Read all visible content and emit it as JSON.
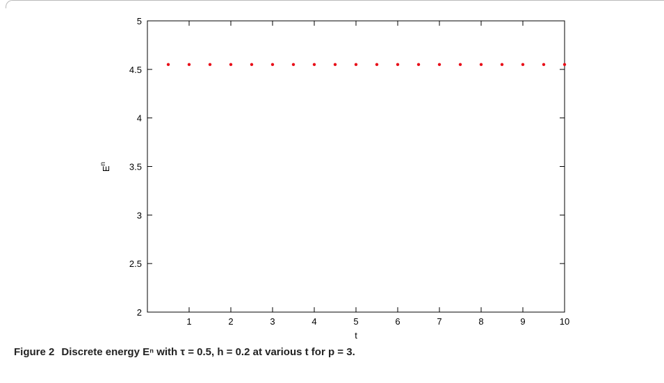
{
  "chart_data": {
    "type": "scatter",
    "xlabel": "t",
    "ylabel_base": "E",
    "ylabel_sup": "n",
    "xlim": [
      0,
      10
    ],
    "ylim": [
      2,
      5
    ],
    "x_ticks": [
      1,
      2,
      3,
      4,
      5,
      6,
      7,
      8,
      9,
      10
    ],
    "y_ticks": [
      2,
      2.5,
      3,
      3.5,
      4,
      4.5,
      5
    ],
    "y_tick_labels": [
      "2",
      "2.5",
      "3",
      "3.5",
      "4",
      "4.5",
      "5"
    ],
    "grid": false,
    "marker_color": "#e8101a",
    "x": [
      0.5,
      1,
      1.5,
      2,
      2.5,
      3,
      3.5,
      4,
      4.5,
      5,
      5.5,
      6,
      6.5,
      7,
      7.5,
      8,
      8.5,
      9,
      9.5,
      10
    ],
    "y": [
      4.55,
      4.55,
      4.55,
      4.55,
      4.55,
      4.55,
      4.55,
      4.55,
      4.55,
      4.55,
      4.55,
      4.55,
      4.55,
      4.55,
      4.55,
      4.55,
      4.55,
      4.55,
      4.55,
      4.55
    ]
  },
  "caption": {
    "figure_label": "Figure 2",
    "text": "Discrete energy Eⁿ with τ = 0.5, h = 0.2 at various t for p = 3."
  }
}
